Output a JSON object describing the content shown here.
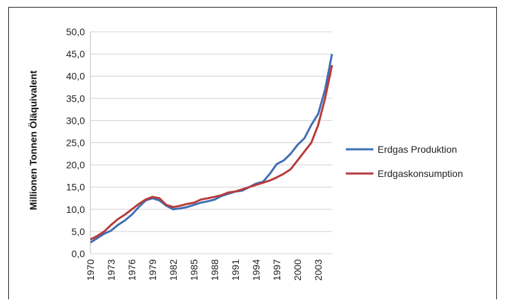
{
  "chart_data": {
    "type": "line",
    "title": "",
    "xlabel": "",
    "ylabel": "Millionen Tonnen Öläquivalent",
    "xlim": [
      1970,
      2005
    ],
    "ylim": [
      0,
      50
    ],
    "y_ticks": [
      "0,0",
      "5,0",
      "10,0",
      "15,0",
      "20,0",
      "25,0",
      "30,0",
      "35,0",
      "40,0",
      "45,0",
      "50,0"
    ],
    "y_tick_values": [
      0,
      5,
      10,
      15,
      20,
      25,
      30,
      35,
      40,
      45,
      50
    ],
    "x_ticks": [
      "1970",
      "1973",
      "1976",
      "1979",
      "1982",
      "1985",
      "1988",
      "1991",
      "1994",
      "1997",
      "2000",
      "2003"
    ],
    "x_tick_values": [
      1970,
      1973,
      1976,
      1979,
      1982,
      1985,
      1988,
      1991,
      1994,
      1997,
      2000,
      2003
    ],
    "grid": true,
    "legend_position": "right",
    "x": [
      1970,
      1971,
      1972,
      1973,
      1974,
      1975,
      1976,
      1977,
      1978,
      1979,
      1980,
      1981,
      1982,
      1983,
      1984,
      1985,
      1986,
      1987,
      1988,
      1989,
      1990,
      1991,
      1992,
      1993,
      1994,
      1995,
      1996,
      1997,
      1998,
      1999,
      2000,
      2001,
      2002,
      2003,
      2004,
      2005
    ],
    "series": [
      {
        "name": "Erdgas Produktion",
        "color": "#3f6fb5",
        "values": [
          2.5,
          3.5,
          4.5,
          5.2,
          6.5,
          7.5,
          8.8,
          10.5,
          12.0,
          12.5,
          12.0,
          10.8,
          10.0,
          10.2,
          10.5,
          11.0,
          11.5,
          11.8,
          12.2,
          13.0,
          13.5,
          14.0,
          14.2,
          15.0,
          15.8,
          16.2,
          18.0,
          20.2,
          21.0,
          22.5,
          24.5,
          26.0,
          29.0,
          31.5,
          37.0,
          45.0
        ]
      },
      {
        "name": "Erdgaskonsumption",
        "color": "#b83a3a",
        "values": [
          3.2,
          4.0,
          5.0,
          6.5,
          7.8,
          8.8,
          10.0,
          11.2,
          12.2,
          12.8,
          12.5,
          11.0,
          10.5,
          10.8,
          11.2,
          11.5,
          12.2,
          12.5,
          12.8,
          13.2,
          13.8,
          14.0,
          14.5,
          15.0,
          15.5,
          16.0,
          16.5,
          17.2,
          18.0,
          19.0,
          21.0,
          23.0,
          25.0,
          29.0,
          35.0,
          42.5
        ]
      }
    ]
  }
}
